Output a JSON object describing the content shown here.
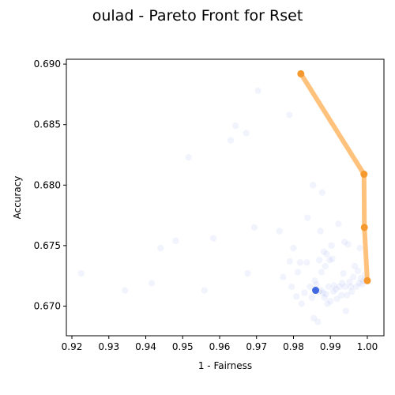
{
  "chart_data": {
    "type": "scatter",
    "title": "oulad - Pareto Front for Rset",
    "xlabel": "1 - Fairness",
    "ylabel": "Accuracy",
    "xlim": [
      0.9185,
      1.0045
    ],
    "ylim": [
      0.66755,
      0.6904
    ],
    "xticks": [
      0.92,
      0.93,
      0.94,
      0.95,
      0.96,
      0.97,
      0.98,
      0.99,
      1.0
    ],
    "xtick_labels": [
      "0.92",
      "0.93",
      "0.94",
      "0.95",
      "0.96",
      "0.97",
      "0.98",
      "0.99",
      "1.00"
    ],
    "yticks": [
      0.67,
      0.675,
      0.68,
      0.685,
      0.69
    ],
    "ytick_labels": [
      "0.670",
      "0.675",
      "0.680",
      "0.685",
      "0.690"
    ],
    "grid": false,
    "series": [
      {
        "role": "rset",
        "color": "#4169e1",
        "opacity": 0.07,
        "points": [
          [
            0.9225,
            0.6727
          ],
          [
            0.9344,
            0.6713
          ],
          [
            0.9416,
            0.6719
          ],
          [
            0.944,
            0.6748
          ],
          [
            0.9481,
            0.6754
          ],
          [
            0.9516,
            0.6823
          ],
          [
            0.9559,
            0.6713
          ],
          [
            0.9583,
            0.6756
          ],
          [
            0.963,
            0.6837
          ],
          [
            0.9643,
            0.6849
          ],
          [
            0.9672,
            0.6843
          ],
          [
            0.9676,
            0.6727
          ],
          [
            0.9694,
            0.6765
          ],
          [
            0.9704,
            0.6878
          ],
          [
            0.9762,
            0.6762
          ],
          [
            0.9772,
            0.6724
          ],
          [
            0.9789,
            0.6858
          ],
          [
            0.979,
            0.6737
          ],
          [
            0.9795,
            0.6716
          ],
          [
            0.98,
            0.6748
          ],
          [
            0.9808,
            0.6708
          ],
          [
            0.9812,
            0.6728
          ],
          [
            0.9818,
            0.6736
          ],
          [
            0.9822,
            0.6702
          ],
          [
            0.983,
            0.6711
          ],
          [
            0.9836,
            0.6736
          ],
          [
            0.9838,
            0.6773
          ],
          [
            0.9845,
            0.6716
          ],
          [
            0.985,
            0.6707
          ],
          [
            0.9853,
            0.68
          ],
          [
            0.9855,
            0.669
          ],
          [
            0.9858,
            0.6721
          ],
          [
            0.986,
            0.6714
          ],
          [
            0.9862,
            0.6718
          ],
          [
            0.9866,
            0.6687
          ],
          [
            0.9868,
            0.6712
          ],
          [
            0.987,
            0.6738
          ],
          [
            0.9873,
            0.6762
          ],
          [
            0.9875,
            0.6713
          ],
          [
            0.9876,
            0.6728
          ],
          [
            0.9878,
            0.6794
          ],
          [
            0.988,
            0.6711
          ],
          [
            0.9882,
            0.6745
          ],
          [
            0.9884,
            0.6707
          ],
          [
            0.9886,
            0.6733
          ],
          [
            0.9888,
            0.671
          ],
          [
            0.989,
            0.6743
          ],
          [
            0.9892,
            0.6702
          ],
          [
            0.9895,
            0.6716
          ],
          [
            0.9898,
            0.6738
          ],
          [
            0.99,
            0.6704
          ],
          [
            0.9903,
            0.675
          ],
          [
            0.9905,
            0.6739
          ],
          [
            0.9908,
            0.6712
          ],
          [
            0.991,
            0.6717
          ],
          [
            0.9915,
            0.6714
          ],
          [
            0.9918,
            0.6706
          ],
          [
            0.9922,
            0.6768
          ],
          [
            0.9925,
            0.6716
          ],
          [
            0.993,
            0.6709
          ],
          [
            0.9932,
            0.6719
          ],
          [
            0.9935,
            0.6727
          ],
          [
            0.9938,
            0.6753
          ],
          [
            0.994,
            0.6716
          ],
          [
            0.9942,
            0.6696
          ],
          [
            0.9945,
            0.6709
          ],
          [
            0.9948,
            0.6751
          ],
          [
            0.9952,
            0.672
          ],
          [
            0.9955,
            0.6716
          ],
          [
            0.9958,
            0.6712
          ],
          [
            0.9962,
            0.6724
          ],
          [
            0.9966,
            0.6733
          ],
          [
            0.997,
            0.6716
          ],
          [
            0.9974,
            0.6729
          ],
          [
            0.9978,
            0.6719
          ],
          [
            0.998,
            0.6748
          ],
          [
            0.9983,
            0.6723
          ],
          [
            0.9986,
            0.6718
          ],
          [
            0.999,
            0.6721
          ],
          [
            0.9994,
            0.6726
          ]
        ]
      },
      {
        "role": "selected",
        "color": "#4169e1",
        "opacity": 1.0,
        "points": [
          [
            0.986,
            0.6713
          ]
        ]
      },
      {
        "role": "pareto-front",
        "color": "#f5992e",
        "line_color": "#ffc27d",
        "opacity": 1.0,
        "points": [
          [
            0.982,
            0.6892
          ],
          [
            0.9991,
            0.6809
          ],
          [
            0.9992,
            0.6765
          ],
          [
            1.0,
            0.6721
          ]
        ]
      }
    ]
  }
}
